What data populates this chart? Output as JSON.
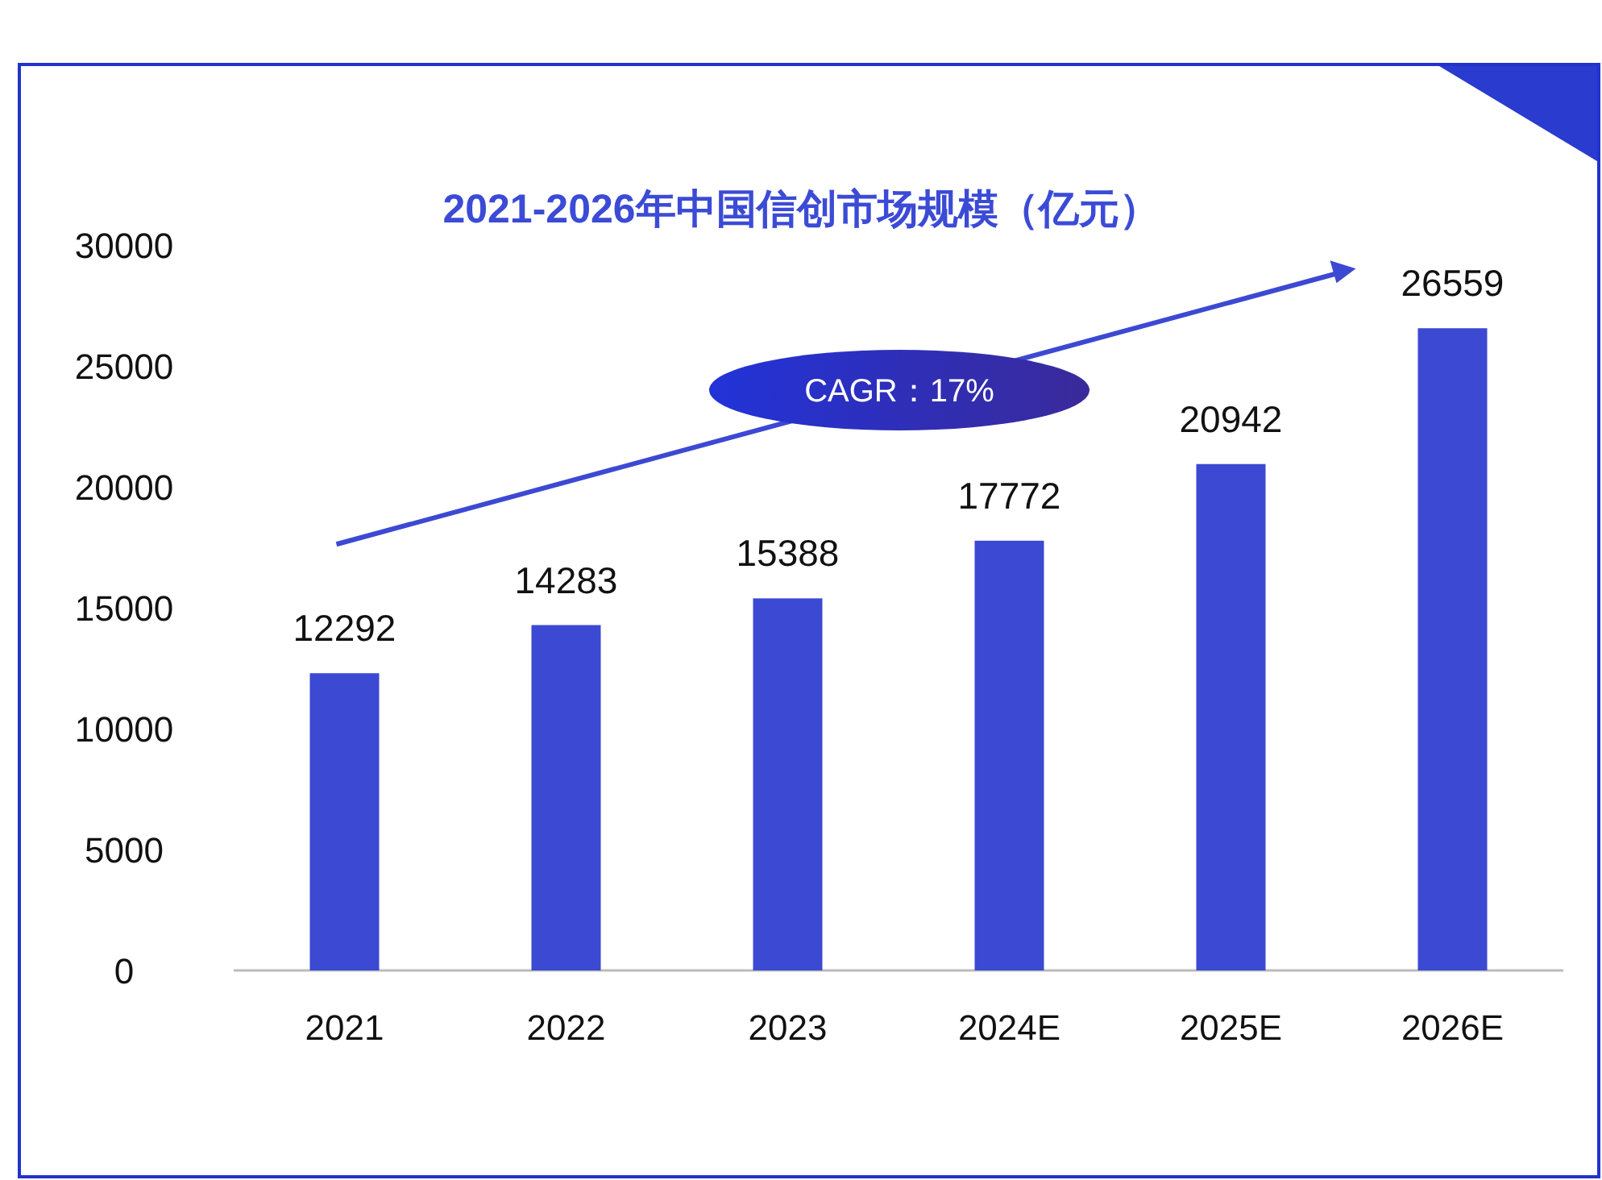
{
  "chart_data": {
    "type": "bar",
    "title": "2021-2026年中国信创市场规模（亿元）",
    "categories": [
      "2021",
      "2022",
      "2023",
      "2024E",
      "2025E",
      "2026E"
    ],
    "values": [
      12292,
      14283,
      15388,
      17772,
      20942,
      26559
    ],
    "color": "#3c49d2",
    "ylim": [
      0,
      30000
    ],
    "yticks": [
      0,
      5000,
      10000,
      15000,
      20000,
      25000,
      30000
    ],
    "data_labels": true,
    "annotations": [
      "CAGR：17%"
    ]
  }
}
